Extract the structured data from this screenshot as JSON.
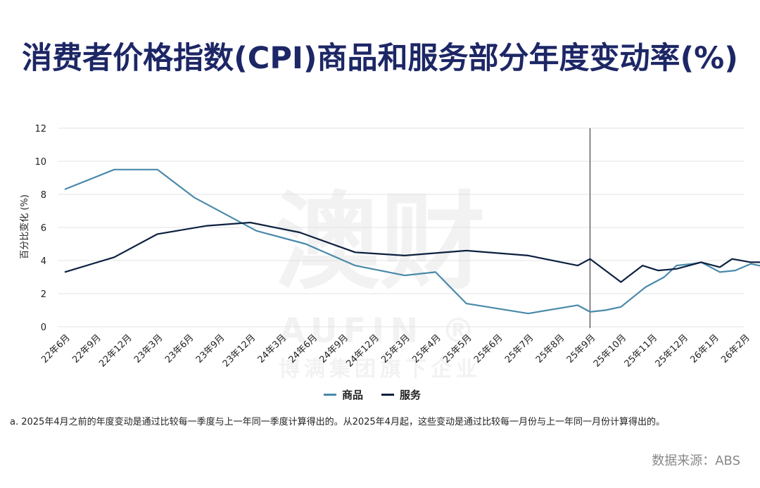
{
  "title": "消费者价格指数(CPI)商品和服务部分年度变动率(%)",
  "chart_data": {
    "type": "line",
    "title": "消费者价格指数(CPI)商品和服务部分年度变动率(%)",
    "ylabel": "百分比变化 (%)",
    "xlabel": "",
    "ylim": [
      0,
      12
    ],
    "yticks": [
      "0",
      "2",
      "4",
      "6",
      "8",
      "10",
      "12"
    ],
    "grid": true,
    "legend_position": "bottom-center",
    "x_label_ticks": [
      "22年6月",
      "22年9月",
      "22年12月",
      "23年3月",
      "23年6月",
      "23年9月",
      "23年12月",
      "24年3月",
      "24年6月",
      "24年9月",
      "24年12月",
      "25年3月",
      "25年4月",
      "25年5月",
      "25年6月",
      "25年7月",
      "25年8月",
      "25年9月",
      "25年10月",
      "25年11月",
      "25年12月",
      "26年1月",
      "26年2月"
    ],
    "vertical_marker_index": 17.0,
    "series": [
      {
        "name": "商品",
        "color": "#4a8aaa",
        "points": [
          [
            0,
            8.3
          ],
          [
            1.6,
            9.5
          ],
          [
            3,
            9.5
          ],
          [
            4.2,
            7.8
          ],
          [
            6.2,
            5.8
          ],
          [
            7.8,
            5.0
          ],
          [
            9.4,
            3.7
          ],
          [
            11,
            3.1
          ],
          [
            12,
            3.3
          ],
          [
            13,
            1.4
          ],
          [
            15,
            0.8
          ],
          [
            16.6,
            1.3
          ],
          [
            17,
            0.9
          ],
          [
            17.5,
            1.0
          ],
          [
            18,
            1.2
          ],
          [
            18.8,
            2.4
          ],
          [
            19.4,
            3.0
          ],
          [
            19.8,
            3.7
          ],
          [
            20.3,
            3.8
          ],
          [
            20.6,
            3.9
          ],
          [
            21.2,
            3.3
          ],
          [
            21.7,
            3.4
          ],
          [
            22.2,
            3.8
          ],
          [
            23,
            3.5
          ]
        ]
      },
      {
        "name": "服务",
        "color": "#0d2140",
        "points": [
          [
            0,
            3.3
          ],
          [
            1.6,
            4.2
          ],
          [
            3,
            5.6
          ],
          [
            4.6,
            6.1
          ],
          [
            6,
            6.3
          ],
          [
            7.6,
            5.7
          ],
          [
            9.4,
            4.5
          ],
          [
            11,
            4.3
          ],
          [
            13,
            4.6
          ],
          [
            15,
            4.3
          ],
          [
            16.6,
            3.7
          ],
          [
            17,
            4.1
          ],
          [
            18,
            2.7
          ],
          [
            18.7,
            3.7
          ],
          [
            19.2,
            3.4
          ],
          [
            19.8,
            3.5
          ],
          [
            20.6,
            3.9
          ],
          [
            21.2,
            3.6
          ],
          [
            21.6,
            4.1
          ],
          [
            22.2,
            3.9
          ],
          [
            23,
            3.9
          ]
        ]
      }
    ]
  },
  "watermark": {
    "main": "澳财",
    "sub": "AUFIN ®",
    "sub2": "博满集团旗下企业"
  },
  "footnote": "a. 2025年4月之前的年度变动是通过比较每一季度与上一年同一季度计算得出的。从2025年4月起，这些变动是通过比较每一月份与上一年同一月份计算得出的。",
  "source": "数据来源：ABS"
}
